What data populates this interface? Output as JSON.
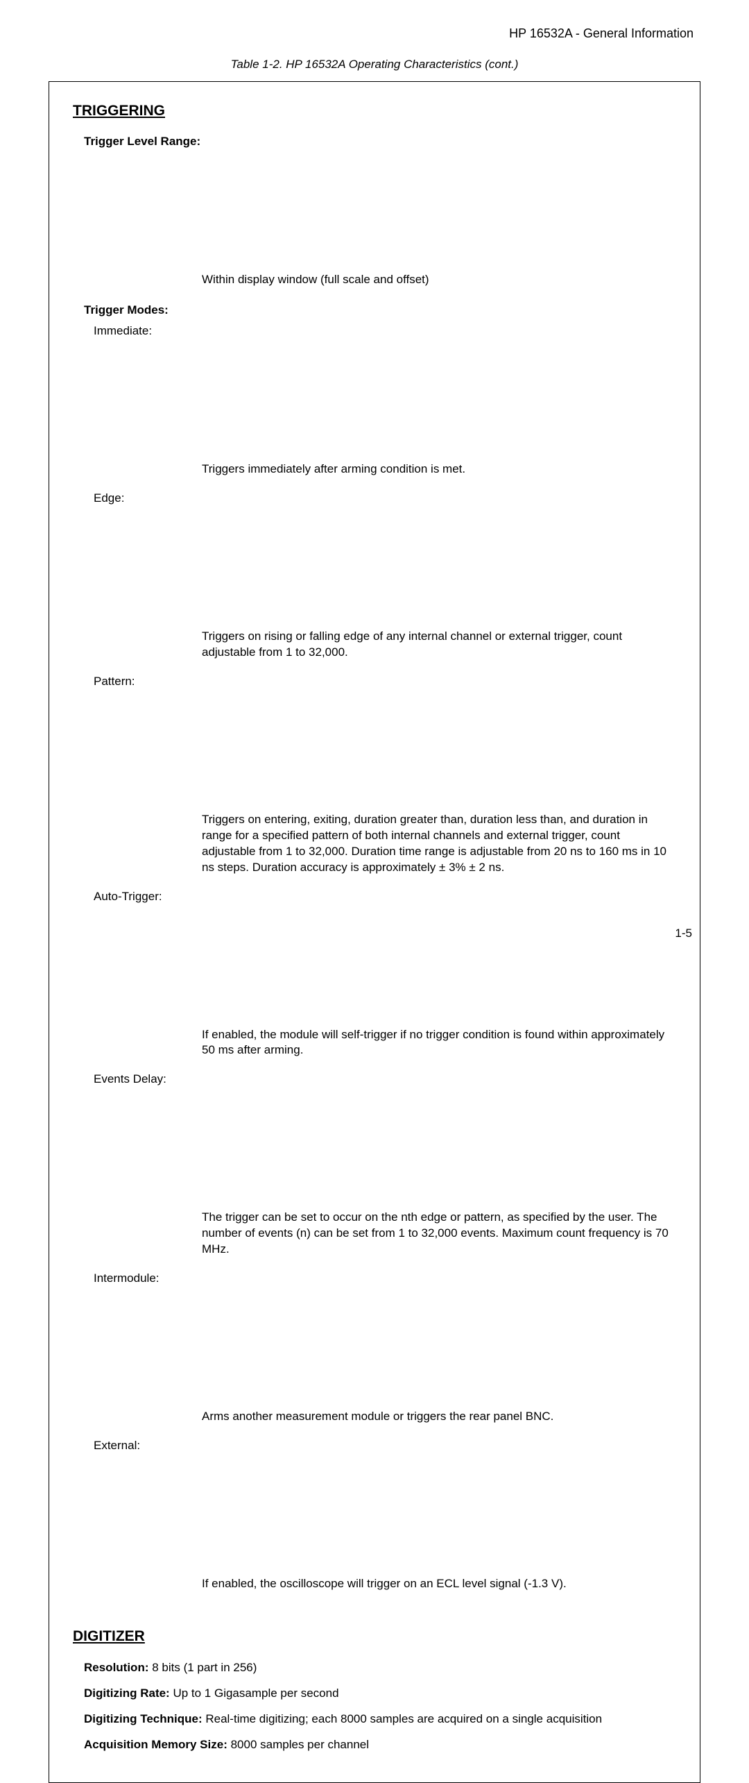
{
  "header": "HP 16532A - General Information",
  "caption": "Table 1-2.  HP 16532A Operating Characteristics (cont.)",
  "page_number": "1-5",
  "sections": {
    "triggering": {
      "title": "TRIGGERING",
      "trigger_level_range": {
        "label": "Trigger Level Range:",
        "value": "Within display window (full scale and offset)"
      },
      "trigger_modes": {
        "label": "Trigger Modes:",
        "items": {
          "immediate": {
            "label": "Immediate:",
            "value": "Triggers immediately after arming condition is met."
          },
          "edge": {
            "label": "Edge:",
            "value": "Triggers on rising or falling edge of any internal channel or external trigger, count adjustable from 1 to 32,000."
          },
          "pattern": {
            "label": "Pattern:",
            "value": "Triggers on entering, exiting, duration greater than, duration less than, and duration in range for a specified pattern of both internal channels and external trigger, count adjustable from 1 to 32,000.  Duration time range is adjustable from 20 ns to 160 ms in 10 ns steps.  Duration accuracy is approximately ±  3% ±  2 ns."
          },
          "auto_trigger": {
            "label": "Auto-Trigger:",
            "value": "If enabled, the module will self-trigger if no trigger condition is found within approximately 50 ms after arming."
          },
          "events_delay": {
            "label": "Events Delay:",
            "value": "The trigger can be set to occur on the nth edge or pattern, as specified by the user.  The number of events (n) can be set from 1 to 32,000 events.  Maximum count frequency is 70 MHz."
          },
          "intermodule": {
            "label": "Intermodule:",
            "value": "Arms another measurement module or triggers the rear panel BNC."
          },
          "external": {
            "label": "External:",
            "value": "If enabled, the oscilloscope will trigger on an ECL level signal (-1.3 V)."
          }
        }
      }
    },
    "digitizer": {
      "title": "DIGITIZER",
      "items": {
        "resolution": {
          "label": "Resolution:",
          "value": "  8 bits (1 part in 256)"
        },
        "digitizing_rate": {
          "label": "Digitizing Rate:",
          "value": "  Up to 1 Gigasample per second"
        },
        "digitizing_tech": {
          "label": "Digitizing Technique:",
          "value": "  Real-time digitizing; each 8000 samples are acquired on a single acquisition"
        },
        "acq_memory": {
          "label": "Acquisition Memory Size:",
          "value": "  8000 samples per channel"
        }
      }
    }
  }
}
